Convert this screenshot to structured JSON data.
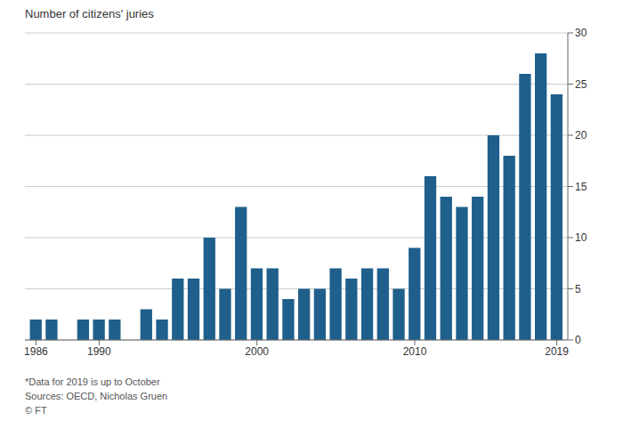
{
  "chart_data": {
    "type": "bar",
    "ylabel": "Number of citizens' juries",
    "x": [
      1986,
      1987,
      1988,
      1989,
      1990,
      1991,
      1992,
      1993,
      1994,
      1995,
      1996,
      1997,
      1998,
      1999,
      2000,
      2001,
      2002,
      2003,
      2004,
      2005,
      2006,
      2007,
      2008,
      2009,
      2010,
      2011,
      2012,
      2013,
      2014,
      2015,
      2016,
      2017,
      2018,
      2019
    ],
    "values": [
      2,
      2,
      0,
      2,
      2,
      2,
      0,
      3,
      2,
      6,
      6,
      10,
      5,
      13,
      7,
      7,
      4,
      5,
      5,
      7,
      6,
      7,
      7,
      5,
      9,
      16,
      14,
      13,
      14,
      20,
      18,
      26,
      28,
      24
    ],
    "color": "#1f5f8b",
    "xlim": [
      1985.3,
      2019.7
    ],
    "xticks": [
      1986,
      1990,
      2000,
      2010,
      2019
    ],
    "ylim": [
      0,
      30
    ],
    "yticks": [
      0,
      5,
      10,
      15,
      20,
      25,
      30
    ],
    "grid": true,
    "annotations": [
      "*Data for 2019 is up to October",
      "Sources: OECD, Nicholas Gruen",
      "© FT"
    ]
  }
}
